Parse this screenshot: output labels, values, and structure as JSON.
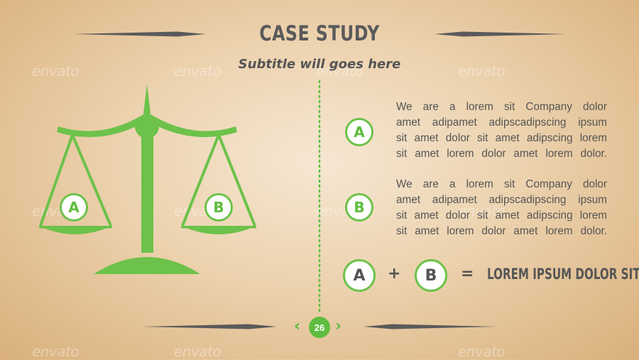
{
  "slide": {
    "title": "CASE STUDY",
    "subtitle": "Subtitle will goes here",
    "watermark_text": "envato",
    "colors": {
      "accent": "#5ebd3e",
      "text": "#555555",
      "background": "#ecd2ae"
    }
  },
  "scale": {
    "left_pan_label": "A",
    "right_pan_label": "B",
    "icon": "balance-scale-icon"
  },
  "items": [
    {
      "marker": "A",
      "lines": [
        "We are a lorem sit Company dolor",
        "amet adipamet adipscadipscing ipsum",
        "sit amet dolor sit amet adipscing lorem",
        "sit amet lorem dolor amet lorem dolor."
      ]
    },
    {
      "marker": "B",
      "lines": [
        "We are a lorem sit Company dolor",
        "amet adipamet adipscadipscing ipsum",
        "sit amet dolor sit amet adipscing lorem",
        "sit amet lorem dolor amet lorem dolor."
      ]
    }
  ],
  "equation": {
    "a": "A",
    "plus": "+",
    "b": "B",
    "equals": "=",
    "result": "LOREM IPSUM DOLOR  SIT"
  },
  "pager": {
    "page": "26",
    "prev_icon": "chevron-left-icon",
    "next_icon": "chevron-right-icon"
  }
}
